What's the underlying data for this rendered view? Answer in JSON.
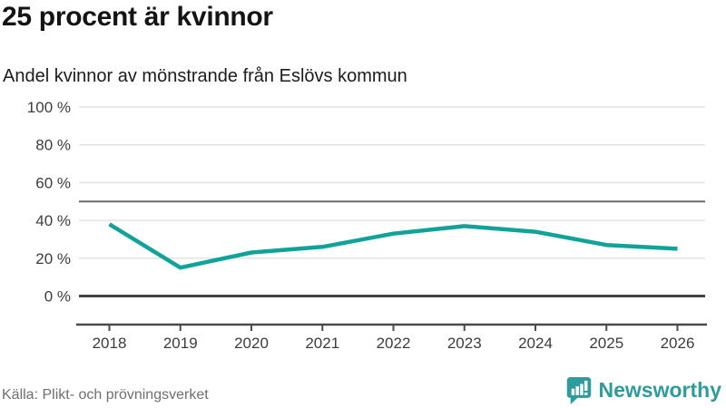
{
  "header": {
    "title": "25 procent är kvinnor",
    "subtitle": "Andel kvinnor av mönstrande från Eslövs kommun"
  },
  "chart_data": {
    "type": "line",
    "title": "25 procent är kvinnor",
    "subtitle": "Andel kvinnor av mönstrande från Eslövs kommun",
    "x": [
      2018,
      2019,
      2020,
      2021,
      2022,
      2023,
      2024,
      2025,
      2026
    ],
    "series": [
      {
        "name": "Andel kvinnor av mönstrande",
        "values": [
          38,
          15,
          23,
          26,
          33,
          37,
          34,
          27,
          25
        ]
      }
    ],
    "unit": "%",
    "ylim": [
      0,
      100
    ],
    "yticks": [
      0,
      20,
      40,
      60,
      80,
      100
    ],
    "ytick_suffix": " %",
    "reference_line": 50,
    "grid": true,
    "legend": "none",
    "colors": {
      "line": "#11A29A",
      "gridline": "#e3e3e3",
      "reference_line": "#6b6b6b",
      "zero_line": "#454545",
      "axis": "#4a4a4a",
      "tick_label": "#3d3d3d"
    }
  },
  "footer": {
    "source": "Källa: Plikt- och prövningsverket",
    "brand": "Newsworthy",
    "brand_color": "#2E9C9C"
  }
}
